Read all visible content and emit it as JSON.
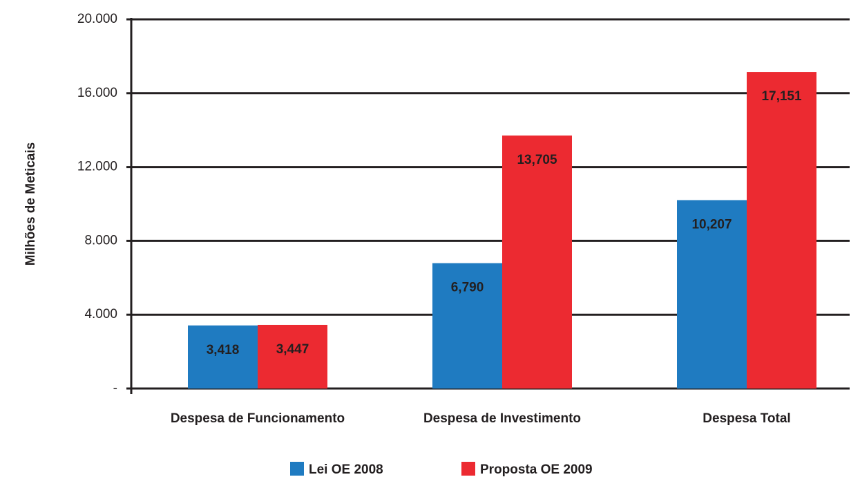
{
  "chart_data": {
    "type": "bar",
    "y_label": "Milhões de Meticais",
    "categories": [
      "Despesa de Funcionamento",
      "Despesa de Investimento",
      "Despesa Total"
    ],
    "series": [
      {
        "name": "Lei OE 2008",
        "color": "#1f7bc1",
        "values": [
          3418,
          6790,
          10207
        ],
        "value_labels": [
          "3,418",
          "6,790",
          "10,207"
        ]
      },
      {
        "name": "Proposta OE 2009",
        "color": "#ec2a31",
        "values": [
          3447,
          13705,
          17151
        ],
        "value_labels": [
          "3,447",
          "13,705",
          "17,151"
        ]
      }
    ],
    "ylim": [
      0,
      20000
    ],
    "yticks": [
      {
        "value": 0,
        "label": "-"
      },
      {
        "value": 4000,
        "label": "4.000"
      },
      {
        "value": 8000,
        "label": "8.000"
      },
      {
        "value": 12000,
        "label": "12.000"
      },
      {
        "value": 16000,
        "label": "16.000"
      },
      {
        "value": 20000,
        "label": "20.000"
      }
    ],
    "grid": true
  }
}
